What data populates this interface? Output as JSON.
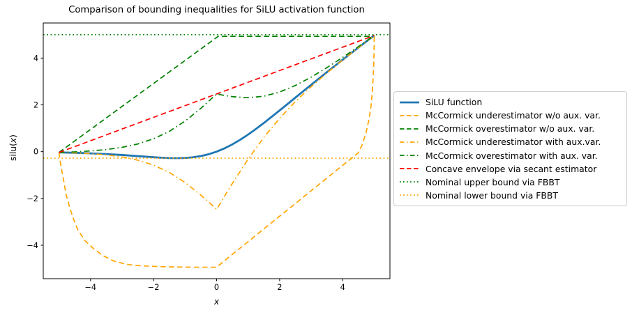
{
  "title": "Comparison of bounding inequalities for SiLU activation function",
  "axes": {
    "xlabel": "x",
    "ylabel_prefix": "silu(",
    "ylabel_var": "x",
    "ylabel_suffix": ")",
    "xticks": {
      "values": [
        -4,
        -2,
        0,
        2,
        4
      ],
      "labels": [
        "−4",
        "−2",
        "0",
        "2",
        "4"
      ]
    },
    "yticks": {
      "values": [
        -4,
        -2,
        0,
        2,
        4
      ],
      "labels": [
        "−4",
        "−2",
        "0",
        "2",
        "4"
      ]
    }
  },
  "colors": {
    "blue": "#1f77b4",
    "orange": "#ffa500",
    "green": "#008000",
    "red": "#ff0000",
    "axis": "#000000",
    "legend_border": "#cccccc",
    "background": "#ffffff"
  },
  "chart_data": {
    "type": "line",
    "title": "Comparison of bounding inequalities for SiLU activation function",
    "xlabel": "x",
    "ylabel": "silu(x)",
    "xlim": [
      -5.5,
      5.5
    ],
    "ylim": [
      -5.43,
      5.5
    ],
    "grid": false,
    "legend_position": "outside center right",
    "series": [
      {
        "name": "SiLU function",
        "color": "#1f77b4",
        "style": "solid",
        "width": 2.8,
        "points": [
          [
            -5,
            -0.033
          ],
          [
            -4.5,
            -0.049
          ],
          [
            -4,
            -0.072
          ],
          [
            -3.5,
            -0.103
          ],
          [
            -3,
            -0.142
          ],
          [
            -2.5,
            -0.19
          ],
          [
            -2,
            -0.238
          ],
          [
            -1.75,
            -0.259
          ],
          [
            -1.5,
            -0.274
          ],
          [
            -1.25,
            -0.278
          ],
          [
            -1,
            -0.269
          ],
          [
            -0.75,
            -0.241
          ],
          [
            -0.5,
            -0.189
          ],
          [
            -0.25,
            -0.109
          ],
          [
            0,
            0
          ],
          [
            0.25,
            0.141
          ],
          [
            0.5,
            0.311
          ],
          [
            0.75,
            0.509
          ],
          [
            1,
            0.731
          ],
          [
            1.25,
            0.972
          ],
          [
            1.5,
            1.226
          ],
          [
            2,
            1.762
          ],
          [
            2.5,
            2.31
          ],
          [
            3,
            2.858
          ],
          [
            3.5,
            3.397
          ],
          [
            4,
            3.928
          ],
          [
            4.5,
            4.451
          ],
          [
            5,
            4.967
          ]
        ]
      },
      {
        "name": "McCormick underestimator w/o aux. var.",
        "color": "#ffa500",
        "style": "dashed",
        "width": 1.7,
        "points": [
          [
            -5,
            -0.033
          ],
          [
            -4.97,
            -0.35
          ],
          [
            -4.92,
            -0.75
          ],
          [
            -4.85,
            -1.25
          ],
          [
            -4.78,
            -1.8
          ],
          [
            -4.68,
            -2.3
          ],
          [
            -4.55,
            -2.85
          ],
          [
            -4.4,
            -3.35
          ],
          [
            -4.18,
            -3.8
          ],
          [
            -3.9,
            -4.15
          ],
          [
            -3.6,
            -4.45
          ],
          [
            -3.25,
            -4.68
          ],
          [
            -2.85,
            -4.82
          ],
          [
            -2.4,
            -4.88
          ],
          [
            -1.9,
            -4.91
          ],
          [
            -1.3,
            -4.93
          ],
          [
            -0.6,
            -4.94
          ],
          [
            0,
            -4.94
          ],
          [
            0.5,
            -4.39
          ],
          [
            1,
            -3.85
          ],
          [
            1.5,
            -3.3
          ],
          [
            2,
            -2.76
          ],
          [
            2.5,
            -2.22
          ],
          [
            3,
            -1.67
          ],
          [
            3.5,
            -1.13
          ],
          [
            4,
            -0.58
          ],
          [
            4.3,
            -0.27
          ],
          [
            4.5,
            -0.04
          ],
          [
            4.62,
            0.3
          ],
          [
            4.74,
            0.8
          ],
          [
            4.83,
            1.35
          ],
          [
            4.9,
            1.95
          ],
          [
            4.94,
            2.55
          ],
          [
            4.97,
            3.2
          ],
          [
            4.99,
            3.9
          ],
          [
            5,
            4.55
          ],
          [
            5,
            4.967
          ]
        ]
      },
      {
        "name": "McCormick overestimator w/o aux. var.",
        "color": "#008000",
        "style": "dashed",
        "width": 1.7,
        "points": [
          [
            -5,
            -0.033
          ],
          [
            0.05,
            4.93
          ],
          [
            4.85,
            4.93
          ],
          [
            5,
            4.967
          ]
        ]
      },
      {
        "name": "McCormick underestimator with aux.var.",
        "color": "#ffa500",
        "style": "dashdot",
        "width": 1.7,
        "points": [
          [
            -5,
            -0.033
          ],
          [
            -4.5,
            -0.052
          ],
          [
            -4,
            -0.083
          ],
          [
            -3.5,
            -0.137
          ],
          [
            -3,
            -0.224
          ],
          [
            -2.5,
            -0.363
          ],
          [
            -2,
            -0.576
          ],
          [
            -1.5,
            -0.889
          ],
          [
            -1,
            -1.318
          ],
          [
            -0.5,
            -1.858
          ],
          [
            -0.25,
            -2.157
          ],
          [
            0,
            -2.467
          ],
          [
            0.25,
            -1.907
          ],
          [
            0.5,
            -1.358
          ],
          [
            1,
            -0.318
          ],
          [
            1.5,
            0.611
          ],
          [
            2,
            1.424
          ],
          [
            2.5,
            2.138
          ],
          [
            3,
            2.776
          ],
          [
            3.5,
            3.362
          ],
          [
            4,
            3.917
          ],
          [
            4.5,
            4.448
          ],
          [
            5,
            4.967
          ]
        ]
      },
      {
        "name": "McCormick overestimator with aux. var.",
        "color": "#008000",
        "style": "dashdot",
        "width": 1.7,
        "points": [
          [
            -5,
            -0.033
          ],
          [
            -4.5,
            -0.009
          ],
          [
            -4,
            0.03
          ],
          [
            -3.5,
            0.09
          ],
          [
            -3,
            0.184
          ],
          [
            -2.5,
            0.329
          ],
          [
            -2,
            0.549
          ],
          [
            -1.5,
            0.868
          ],
          [
            -1,
            1.305
          ],
          [
            -0.5,
            1.851
          ],
          [
            -0.25,
            2.154
          ],
          [
            0,
            2.467
          ],
          [
            0.25,
            2.404
          ],
          [
            0.5,
            2.351
          ],
          [
            1,
            2.305
          ],
          [
            1.5,
            2.369
          ],
          [
            2,
            2.549
          ],
          [
            2.5,
            2.829
          ],
          [
            3,
            3.184
          ],
          [
            3.5,
            3.591
          ],
          [
            4,
            4.03
          ],
          [
            4.5,
            4.491
          ],
          [
            5,
            4.967
          ]
        ]
      },
      {
        "name": "Concave envelope via secant estimator",
        "color": "#ff0000",
        "style": "dashed",
        "width": 1.7,
        "points": [
          [
            -5,
            -0.033
          ],
          [
            5,
            4.967
          ]
        ]
      },
      {
        "name": "Nominal upper bound via FBBT",
        "color": "#008000",
        "style": "dotted",
        "width": 1.7,
        "points": [
          [
            -5.5,
            5.0
          ],
          [
            5.5,
            5.0
          ]
        ]
      },
      {
        "name": "Nominal lower bound via FBBT",
        "color": "#ffa500",
        "style": "dotted",
        "width": 1.7,
        "points": [
          [
            -5.5,
            -0.278
          ],
          [
            5.5,
            -0.278
          ]
        ]
      }
    ]
  }
}
